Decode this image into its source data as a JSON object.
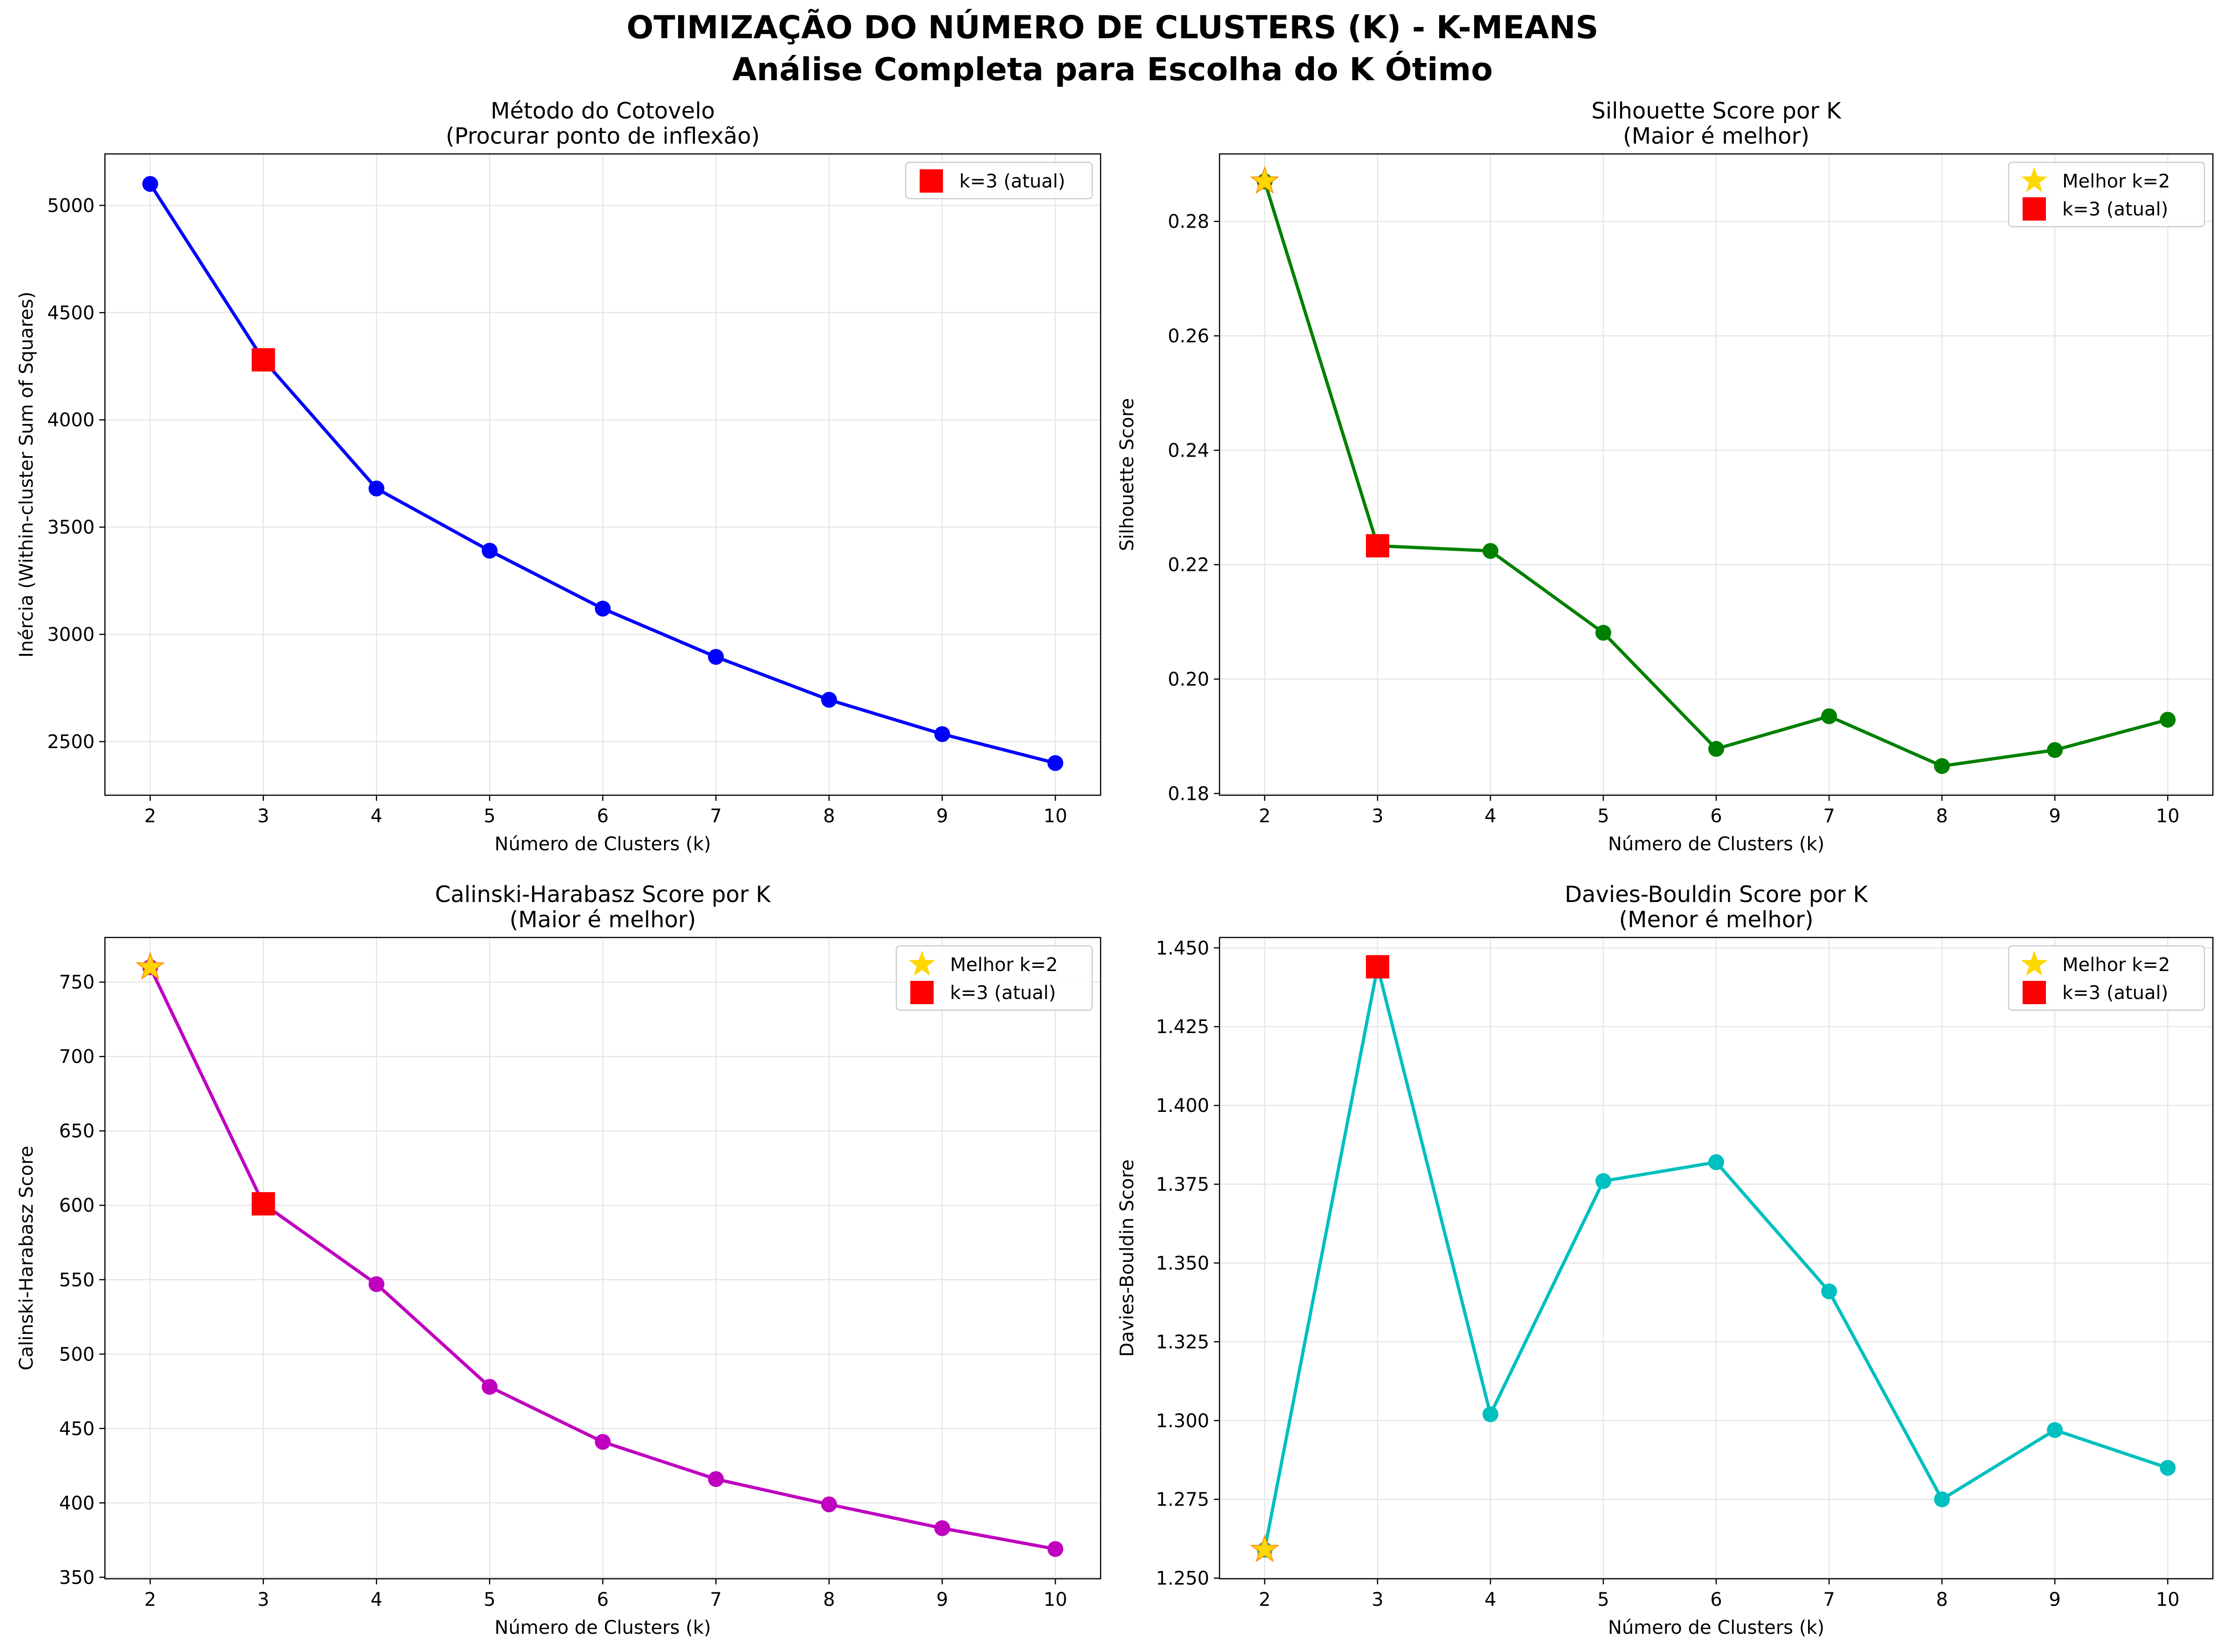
{
  "figure": {
    "title_line1": "OTIMIZAÇÃO DO NÚMERO DE CLUSTERS (K) - K-MEANS",
    "title_line2": "Análise Completa para Escolha do K Ótimo"
  },
  "chart_data": [
    {
      "type": "line",
      "title": "Método do Cotovelo",
      "subtitle": "(Procurar ponto de inflexão)",
      "xlabel": "Número de Clusters (k)",
      "ylabel": "Inércia (Within-cluster Sum of Squares)",
      "x": [
        2,
        3,
        4,
        5,
        6,
        7,
        8,
        9,
        10
      ],
      "values": [
        5100,
        4280,
        3680,
        3390,
        3120,
        2895,
        2695,
        2535,
        2400
      ],
      "xlim": [
        1.6,
        10.4
      ],
      "ylim": [
        2250,
        5240
      ],
      "yticks": [
        2500,
        3000,
        3500,
        4000,
        4500,
        5000
      ],
      "ytick_labels": [
        "2500",
        "3000",
        "3500",
        "4000",
        "4500",
        "5000"
      ],
      "color": "#0000ff",
      "grid": true,
      "legend_position": "top-right",
      "highlights": [
        {
          "kind": "square",
          "x": 3,
          "y": 4280,
          "color": "#ff0000",
          "label": "k=3 (atual)"
        }
      ]
    },
    {
      "type": "line",
      "title": "Silhouette Score por K",
      "subtitle": "(Maior é melhor)",
      "xlabel": "Número de Clusters (k)",
      "ylabel": "Silhouette Score",
      "x": [
        2,
        3,
        4,
        5,
        6,
        7,
        8,
        9,
        10
      ],
      "values": [
        0.287,
        0.2233,
        0.2224,
        0.2081,
        0.1878,
        0.1935,
        0.1848,
        0.1876,
        0.1929
      ],
      "xlim": [
        1.6,
        10.4
      ],
      "ylim": [
        0.1797,
        0.2918
      ],
      "yticks": [
        0.18,
        0.2,
        0.22,
        0.24,
        0.26,
        0.28
      ],
      "ytick_labels": [
        "0.18",
        "0.20",
        "0.22",
        "0.24",
        "0.26",
        "0.28"
      ],
      "color": "#008000",
      "grid": true,
      "legend_position": "top-right",
      "highlights": [
        {
          "kind": "star",
          "x": 2,
          "y": 0.287,
          "color": "#ffd700",
          "label": "Melhor k=2"
        },
        {
          "kind": "square",
          "x": 3,
          "y": 0.2233,
          "color": "#ff0000",
          "label": "k=3 (atual)"
        }
      ]
    },
    {
      "type": "line",
      "title": "Calinski-Harabasz Score por K",
      "subtitle": "(Maior é melhor)",
      "xlabel": "Número de Clusters (k)",
      "ylabel": "Calinski-Harabasz Score",
      "x": [
        2,
        3,
        4,
        5,
        6,
        7,
        8,
        9,
        10
      ],
      "values": [
        760,
        601,
        547,
        478,
        441,
        416,
        399,
        383,
        369
      ],
      "xlim": [
        1.6,
        10.4
      ],
      "ylim": [
        349,
        780
      ],
      "yticks": [
        350,
        400,
        450,
        500,
        550,
        600,
        650,
        700,
        750
      ],
      "ytick_labels": [
        "350",
        "400",
        "450",
        "500",
        "550",
        "600",
        "650",
        "700",
        "750"
      ],
      "color": "#bf00bf",
      "grid": true,
      "legend_position": "top-right",
      "highlights": [
        {
          "kind": "star",
          "x": 2,
          "y": 760,
          "color": "#ffd700",
          "label": "Melhor k=2"
        },
        {
          "kind": "square",
          "x": 3,
          "y": 601,
          "color": "#ff0000",
          "label": "k=3 (atual)"
        }
      ]
    },
    {
      "type": "line",
      "title": "Davies-Bouldin Score por K",
      "subtitle": "(Menor é melhor)",
      "xlabel": "Número de Clusters (k)",
      "ylabel": "Davies-Bouldin Score",
      "x": [
        2,
        3,
        4,
        5,
        6,
        7,
        8,
        9,
        10
      ],
      "values": [
        1.259,
        1.444,
        1.302,
        1.376,
        1.382,
        1.341,
        1.275,
        1.297,
        1.285
      ],
      "xlim": [
        1.6,
        10.4
      ],
      "ylim": [
        1.2498,
        1.4533
      ],
      "yticks": [
        1.25,
        1.275,
        1.3,
        1.325,
        1.35,
        1.375,
        1.4,
        1.425,
        1.45
      ],
      "ytick_labels": [
        "1.250",
        "1.275",
        "1.300",
        "1.325",
        "1.350",
        "1.375",
        "1.400",
        "1.425",
        "1.450"
      ],
      "color": "#00bfbf",
      "grid": true,
      "legend_position": "top-right",
      "highlights": [
        {
          "kind": "star",
          "x": 2,
          "y": 1.259,
          "color": "#ffd700",
          "label": "Melhor k=2"
        },
        {
          "kind": "square",
          "x": 3,
          "y": 1.444,
          "color": "#ff0000",
          "label": "k=3 (atual)"
        }
      ]
    }
  ]
}
